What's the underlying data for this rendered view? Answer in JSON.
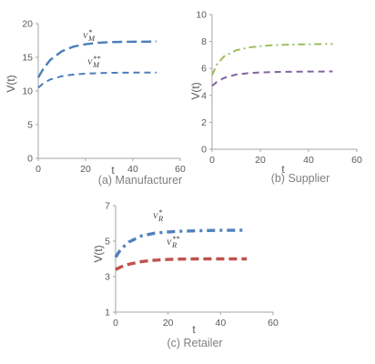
{
  "chart_data": [
    {
      "type": "line",
      "caption": "(a) Manufacturer",
      "xlabel": "t",
      "ylabel": "V(t)",
      "xlim": [
        0,
        60
      ],
      "ylim": [
        0,
        20
      ],
      "xticks": [
        0,
        20,
        40,
        60
      ],
      "yticks": [
        0,
        5,
        10,
        15,
        20
      ],
      "series": [
        {
          "label_base": "V",
          "label_sup": "*",
          "label_sub": "M",
          "color": "#4a7ebb",
          "dash": "long-dash",
          "x": [
            0,
            2,
            5,
            10,
            15,
            20,
            25,
            30,
            35,
            40,
            45,
            50
          ],
          "values": [
            12.0,
            13.2,
            14.6,
            15.9,
            16.6,
            16.95,
            17.15,
            17.25,
            17.3,
            17.32,
            17.33,
            17.35
          ]
        },
        {
          "label_base": "V",
          "label_sup": "**",
          "label_sub": "M",
          "color": "#4a7ebb",
          "dash": "dash",
          "x": [
            0,
            2,
            5,
            10,
            15,
            20,
            25,
            30,
            35,
            40,
            45,
            50
          ],
          "values": [
            10.5,
            11.1,
            11.7,
            12.2,
            12.45,
            12.58,
            12.65,
            12.7,
            12.72,
            12.73,
            12.74,
            12.75
          ]
        }
      ]
    },
    {
      "type": "line",
      "caption": "(b) Supplier",
      "xlabel": "t",
      "ylabel": "V(t)",
      "xlim": [
        0,
        60
      ],
      "ylim": [
        0,
        10
      ],
      "xticks": [
        0,
        20,
        40,
        60
      ],
      "yticks": [
        0,
        2,
        4,
        6,
        8,
        10
      ],
      "series": [
        {
          "color": "#9bbb59",
          "dash": "dash-dot",
          "x": [
            0,
            2,
            5,
            10,
            15,
            20,
            25,
            30,
            35,
            40,
            45,
            50
          ],
          "values": [
            5.5,
            6.3,
            6.9,
            7.35,
            7.55,
            7.65,
            7.72,
            7.76,
            7.78,
            7.8,
            7.81,
            7.82
          ]
        },
        {
          "color": "#8064a2",
          "dash": "dash",
          "x": [
            0,
            2,
            5,
            10,
            15,
            20,
            25,
            30,
            35,
            40,
            45,
            50
          ],
          "values": [
            4.7,
            5.0,
            5.3,
            5.55,
            5.65,
            5.7,
            5.73,
            5.75,
            5.76,
            5.77,
            5.77,
            5.78
          ]
        }
      ]
    },
    {
      "type": "line",
      "caption": "(c) Retailer",
      "xlabel": "t",
      "ylabel": "V(t)",
      "xlim": [
        0,
        60
      ],
      "ylim": [
        1,
        7
      ],
      "xticks": [
        0,
        20,
        40,
        60
      ],
      "yticks": [
        1,
        3,
        5,
        7
      ],
      "series": [
        {
          "label_base": "V",
          "label_sup": "*",
          "label_sub": "R",
          "color": "#4f81bd",
          "dash": "heavy-dash-dot",
          "x": [
            0,
            2,
            5,
            10,
            15,
            20,
            25,
            30,
            35,
            40,
            45,
            50
          ],
          "values": [
            4.1,
            4.55,
            4.95,
            5.3,
            5.45,
            5.52,
            5.56,
            5.58,
            5.6,
            5.61,
            5.61,
            5.62
          ]
        },
        {
          "label_base": "V",
          "label_sup": "**",
          "label_sub": "R",
          "color": "#c0504d",
          "dash": "heavy-dash",
          "x": [
            0,
            2,
            5,
            10,
            15,
            20,
            25,
            30,
            35,
            40,
            45,
            50
          ],
          "values": [
            3.4,
            3.55,
            3.7,
            3.85,
            3.93,
            3.97,
            3.99,
            4.0,
            4.0,
            4.0,
            4.0,
            4.0
          ]
        }
      ]
    }
  ]
}
